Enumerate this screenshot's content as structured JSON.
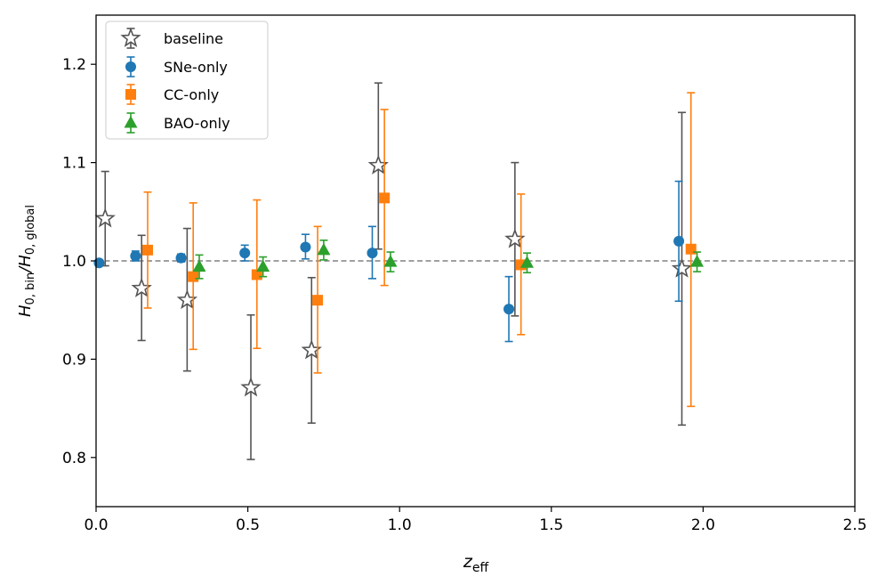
{
  "chart_data": {
    "type": "errorbar-scatter",
    "title": "",
    "xlabel": {
      "main": "z",
      "sub": "eff"
    },
    "ylabel": {
      "a": "H",
      "a_sub": "0, bin",
      "slash": "/",
      "b": "H",
      "b_sub": "0, global"
    },
    "xlim": [
      0.0,
      2.5
    ],
    "ylim": [
      0.75,
      1.25
    ],
    "xticks": [
      0.0,
      0.5,
      1.0,
      1.5,
      2.0,
      2.5
    ],
    "xtick_labels": [
      "0.0",
      "0.5",
      "1.0",
      "1.5",
      "2.0",
      "2.5"
    ],
    "yticks": [
      0.8,
      0.9,
      1.0,
      1.1,
      1.2
    ],
    "ytick_labels": [
      "0.8",
      "0.9",
      "1.0",
      "1.1",
      "1.2"
    ],
    "reference_line": {
      "y": 1.0,
      "style": "dashed",
      "color": "#808080"
    },
    "legend_position": "top-left",
    "series": [
      {
        "name": "baseline",
        "marker": "star",
        "color": "#555555",
        "points": [
          {
            "x": 0.03,
            "y": 1.043,
            "lo": 0.995,
            "hi": 1.091
          },
          {
            "x": 0.15,
            "y": 0.972,
            "lo": 0.919,
            "hi": 1.026
          },
          {
            "x": 0.3,
            "y": 0.96,
            "lo": 0.888,
            "hi": 1.033
          },
          {
            "x": 0.51,
            "y": 0.871,
            "lo": 0.798,
            "hi": 0.945
          },
          {
            "x": 0.71,
            "y": 0.909,
            "lo": 0.835,
            "hi": 0.983
          },
          {
            "x": 0.93,
            "y": 1.097,
            "lo": 1.012,
            "hi": 1.181
          },
          {
            "x": 1.38,
            "y": 1.022,
            "lo": 0.944,
            "hi": 1.1
          },
          {
            "x": 1.93,
            "y": 0.992,
            "lo": 0.833,
            "hi": 1.151
          }
        ]
      },
      {
        "name": "SNe-only",
        "marker": "circle",
        "color": "#1f77b4",
        "points": [
          {
            "x": 0.01,
            "y": 0.998,
            "lo": 0.995,
            "hi": 1.001
          },
          {
            "x": 0.13,
            "y": 1.005,
            "lo": 1.0,
            "hi": 1.01
          },
          {
            "x": 0.28,
            "y": 1.003,
            "lo": 0.999,
            "hi": 1.007
          },
          {
            "x": 0.49,
            "y": 1.008,
            "lo": 1.0,
            "hi": 1.016
          },
          {
            "x": 0.69,
            "y": 1.014,
            "lo": 1.002,
            "hi": 1.027
          },
          {
            "x": 0.91,
            "y": 1.008,
            "lo": 0.982,
            "hi": 1.035
          },
          {
            "x": 1.36,
            "y": 0.951,
            "lo": 0.918,
            "hi": 0.984
          },
          {
            "x": 1.92,
            "y": 1.02,
            "lo": 0.959,
            "hi": 1.081
          }
        ]
      },
      {
        "name": "CC-only",
        "marker": "square",
        "color": "#ff7f0e",
        "points": [
          {
            "x": 0.17,
            "y": 1.011,
            "lo": 0.952,
            "hi": 1.07
          },
          {
            "x": 0.32,
            "y": 0.984,
            "lo": 0.91,
            "hi": 1.059
          },
          {
            "x": 0.53,
            "y": 0.986,
            "lo": 0.911,
            "hi": 1.062
          },
          {
            "x": 0.73,
            "y": 0.96,
            "lo": 0.886,
            "hi": 1.035
          },
          {
            "x": 0.95,
            "y": 1.064,
            "lo": 0.975,
            "hi": 1.154
          },
          {
            "x": 1.4,
            "y": 0.996,
            "lo": 0.925,
            "hi": 1.068
          },
          {
            "x": 1.96,
            "y": 1.012,
            "lo": 0.852,
            "hi": 1.171
          }
        ]
      },
      {
        "name": "BAO-only",
        "marker": "triangle",
        "color": "#2ca02c",
        "points": [
          {
            "x": 0.34,
            "y": 0.994,
            "lo": 0.982,
            "hi": 1.006
          },
          {
            "x": 0.55,
            "y": 0.994,
            "lo": 0.984,
            "hi": 1.004
          },
          {
            "x": 0.75,
            "y": 1.011,
            "lo": 1.001,
            "hi": 1.021
          },
          {
            "x": 0.97,
            "y": 0.999,
            "lo": 0.989,
            "hi": 1.009
          },
          {
            "x": 1.42,
            "y": 0.998,
            "lo": 0.988,
            "hi": 1.008
          },
          {
            "x": 1.98,
            "y": 0.999,
            "lo": 0.989,
            "hi": 1.009
          }
        ]
      }
    ]
  }
}
